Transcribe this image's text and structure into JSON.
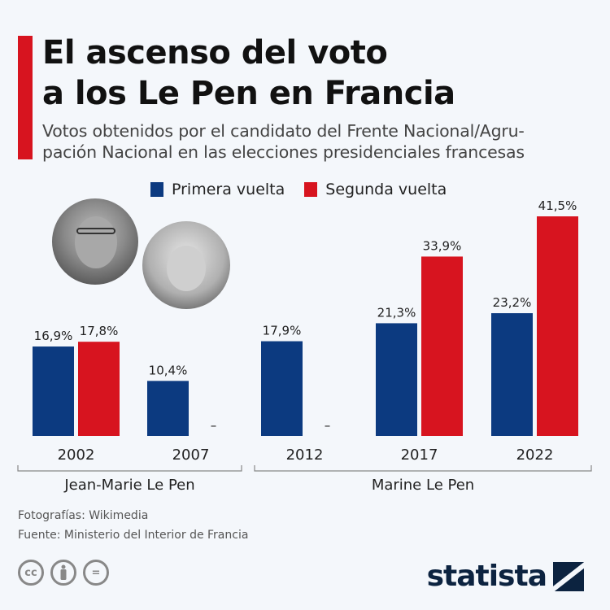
{
  "header": {
    "title_line1": "El ascenso del voto",
    "title_line2": "a los Le Pen en Francia",
    "subtitle_line1": "Votos obtenidos por el candidato del Frente Nacional/Agru-",
    "subtitle_line2": "pación Nacional en las elecciones presidenciales francesas"
  },
  "legend": [
    {
      "label": "Primera vuelta",
      "color": "#0c3a80"
    },
    {
      "label": "Segunda vuelta",
      "color": "#d7141f"
    }
  ],
  "chart_data": {
    "type": "bar",
    "title": "El ascenso del voto a los Le Pen en Francia",
    "categories": [
      "2002",
      "2007",
      "2012",
      "2017",
      "2022"
    ],
    "series": [
      {
        "name": "Primera vuelta",
        "color": "#0c3a80",
        "values": [
          16.9,
          10.4,
          17.9,
          21.3,
          23.2
        ],
        "labels": [
          "16,9%",
          "10,4%",
          "17,9%",
          "21,3%",
          "23,2%"
        ]
      },
      {
        "name": "Segunda vuelta",
        "color": "#d7141f",
        "values": [
          17.8,
          null,
          null,
          33.9,
          41.5
        ],
        "labels": [
          "17,8%",
          "–",
          "–",
          "33,9%",
          "41,5%"
        ]
      }
    ],
    "groups": [
      {
        "label": "Jean-Marie Le Pen",
        "categories": [
          "2002",
          "2007"
        ]
      },
      {
        "label": "Marine Le Pen",
        "categories": [
          "2012",
          "2017",
          "2022"
        ]
      }
    ],
    "xlabel": "",
    "ylabel": "",
    "ylim": [
      0,
      41.5
    ],
    "grid": false,
    "legend_position": "top-center"
  },
  "photos": [
    {
      "name": "Jean-Marie Le Pen"
    },
    {
      "name": "Marine Le Pen"
    }
  ],
  "footer": {
    "photos_credit": "Fotografías: Wikimedia",
    "source": "Fuente: Ministerio del Interior de Francia",
    "brand": "statista",
    "cc_icons": [
      "cc-icon",
      "by-icon",
      "nd-icon"
    ],
    "cc_label": "cc",
    "nd_label": "="
  }
}
